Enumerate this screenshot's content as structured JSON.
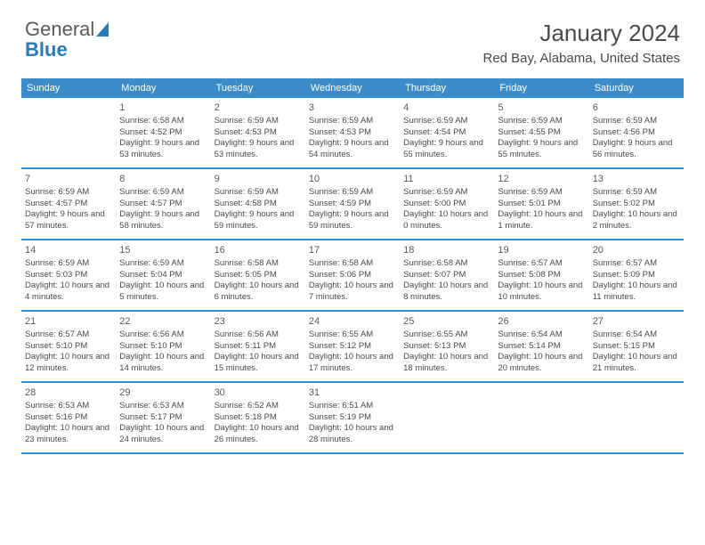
{
  "logo": {
    "text_gray": "General",
    "text_blue": "Blue",
    "icon_color": "#2a7ab8",
    "gray_color": "#5a5a5a"
  },
  "header": {
    "month": "January 2024",
    "location": "Red Bay, Alabama, United States"
  },
  "colors": {
    "header_bg": "#3b8cc9",
    "header_text": "#ffffff",
    "border": "#3b8cc9",
    "text": "#4a4a4a",
    "background": "#ffffff"
  },
  "day_names": [
    "Sunday",
    "Monday",
    "Tuesday",
    "Wednesday",
    "Thursday",
    "Friday",
    "Saturday"
  ],
  "weeks": [
    [
      null,
      {
        "n": "1",
        "sr": "Sunrise: 6:58 AM",
        "ss": "Sunset: 4:52 PM",
        "dl": "Daylight: 9 hours and 53 minutes."
      },
      {
        "n": "2",
        "sr": "Sunrise: 6:59 AM",
        "ss": "Sunset: 4:53 PM",
        "dl": "Daylight: 9 hours and 53 minutes."
      },
      {
        "n": "3",
        "sr": "Sunrise: 6:59 AM",
        "ss": "Sunset: 4:53 PM",
        "dl": "Daylight: 9 hours and 54 minutes."
      },
      {
        "n": "4",
        "sr": "Sunrise: 6:59 AM",
        "ss": "Sunset: 4:54 PM",
        "dl": "Daylight: 9 hours and 55 minutes."
      },
      {
        "n": "5",
        "sr": "Sunrise: 6:59 AM",
        "ss": "Sunset: 4:55 PM",
        "dl": "Daylight: 9 hours and 55 minutes."
      },
      {
        "n": "6",
        "sr": "Sunrise: 6:59 AM",
        "ss": "Sunset: 4:56 PM",
        "dl": "Daylight: 9 hours and 56 minutes."
      }
    ],
    [
      {
        "n": "7",
        "sr": "Sunrise: 6:59 AM",
        "ss": "Sunset: 4:57 PM",
        "dl": "Daylight: 9 hours and 57 minutes."
      },
      {
        "n": "8",
        "sr": "Sunrise: 6:59 AM",
        "ss": "Sunset: 4:57 PM",
        "dl": "Daylight: 9 hours and 58 minutes."
      },
      {
        "n": "9",
        "sr": "Sunrise: 6:59 AM",
        "ss": "Sunset: 4:58 PM",
        "dl": "Daylight: 9 hours and 59 minutes."
      },
      {
        "n": "10",
        "sr": "Sunrise: 6:59 AM",
        "ss": "Sunset: 4:59 PM",
        "dl": "Daylight: 9 hours and 59 minutes."
      },
      {
        "n": "11",
        "sr": "Sunrise: 6:59 AM",
        "ss": "Sunset: 5:00 PM",
        "dl": "Daylight: 10 hours and 0 minutes."
      },
      {
        "n": "12",
        "sr": "Sunrise: 6:59 AM",
        "ss": "Sunset: 5:01 PM",
        "dl": "Daylight: 10 hours and 1 minute."
      },
      {
        "n": "13",
        "sr": "Sunrise: 6:59 AM",
        "ss": "Sunset: 5:02 PM",
        "dl": "Daylight: 10 hours and 2 minutes."
      }
    ],
    [
      {
        "n": "14",
        "sr": "Sunrise: 6:59 AM",
        "ss": "Sunset: 5:03 PM",
        "dl": "Daylight: 10 hours and 4 minutes."
      },
      {
        "n": "15",
        "sr": "Sunrise: 6:59 AM",
        "ss": "Sunset: 5:04 PM",
        "dl": "Daylight: 10 hours and 5 minutes."
      },
      {
        "n": "16",
        "sr": "Sunrise: 6:58 AM",
        "ss": "Sunset: 5:05 PM",
        "dl": "Daylight: 10 hours and 6 minutes."
      },
      {
        "n": "17",
        "sr": "Sunrise: 6:58 AM",
        "ss": "Sunset: 5:06 PM",
        "dl": "Daylight: 10 hours and 7 minutes."
      },
      {
        "n": "18",
        "sr": "Sunrise: 6:58 AM",
        "ss": "Sunset: 5:07 PM",
        "dl": "Daylight: 10 hours and 8 minutes."
      },
      {
        "n": "19",
        "sr": "Sunrise: 6:57 AM",
        "ss": "Sunset: 5:08 PM",
        "dl": "Daylight: 10 hours and 10 minutes."
      },
      {
        "n": "20",
        "sr": "Sunrise: 6:57 AM",
        "ss": "Sunset: 5:09 PM",
        "dl": "Daylight: 10 hours and 11 minutes."
      }
    ],
    [
      {
        "n": "21",
        "sr": "Sunrise: 6:57 AM",
        "ss": "Sunset: 5:10 PM",
        "dl": "Daylight: 10 hours and 12 minutes."
      },
      {
        "n": "22",
        "sr": "Sunrise: 6:56 AM",
        "ss": "Sunset: 5:10 PM",
        "dl": "Daylight: 10 hours and 14 minutes."
      },
      {
        "n": "23",
        "sr": "Sunrise: 6:56 AM",
        "ss": "Sunset: 5:11 PM",
        "dl": "Daylight: 10 hours and 15 minutes."
      },
      {
        "n": "24",
        "sr": "Sunrise: 6:55 AM",
        "ss": "Sunset: 5:12 PM",
        "dl": "Daylight: 10 hours and 17 minutes."
      },
      {
        "n": "25",
        "sr": "Sunrise: 6:55 AM",
        "ss": "Sunset: 5:13 PM",
        "dl": "Daylight: 10 hours and 18 minutes."
      },
      {
        "n": "26",
        "sr": "Sunrise: 6:54 AM",
        "ss": "Sunset: 5:14 PM",
        "dl": "Daylight: 10 hours and 20 minutes."
      },
      {
        "n": "27",
        "sr": "Sunrise: 6:54 AM",
        "ss": "Sunset: 5:15 PM",
        "dl": "Daylight: 10 hours and 21 minutes."
      }
    ],
    [
      {
        "n": "28",
        "sr": "Sunrise: 6:53 AM",
        "ss": "Sunset: 5:16 PM",
        "dl": "Daylight: 10 hours and 23 minutes."
      },
      {
        "n": "29",
        "sr": "Sunrise: 6:53 AM",
        "ss": "Sunset: 5:17 PM",
        "dl": "Daylight: 10 hours and 24 minutes."
      },
      {
        "n": "30",
        "sr": "Sunrise: 6:52 AM",
        "ss": "Sunset: 5:18 PM",
        "dl": "Daylight: 10 hours and 26 minutes."
      },
      {
        "n": "31",
        "sr": "Sunrise: 6:51 AM",
        "ss": "Sunset: 5:19 PM",
        "dl": "Daylight: 10 hours and 28 minutes."
      },
      null,
      null,
      null
    ]
  ]
}
